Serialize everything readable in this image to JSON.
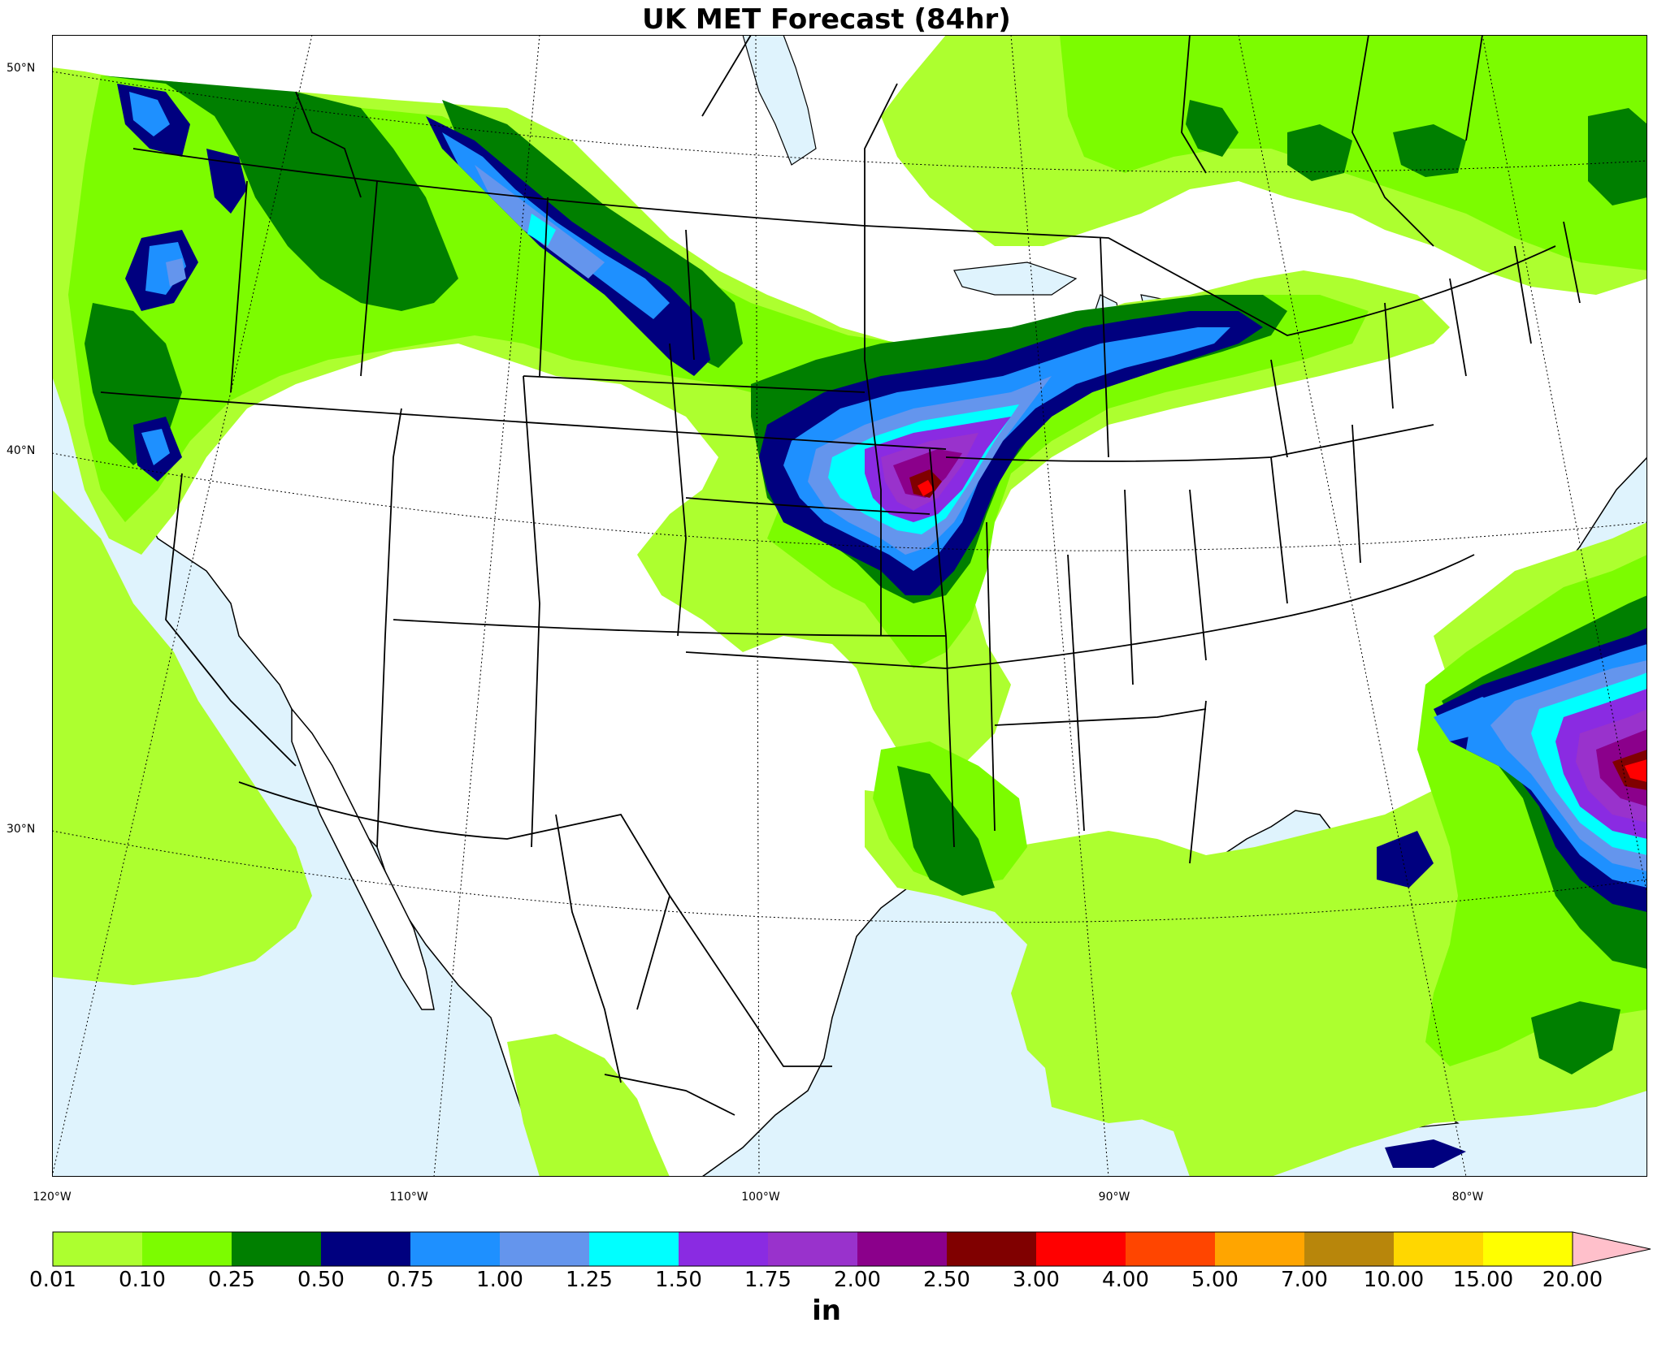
{
  "title": "UK MET Forecast (84hr)",
  "map": {
    "lat_labels": [
      "50°N",
      "40°N",
      "30°N"
    ],
    "lon_labels": [
      "120°W",
      "110°W",
      "100°W",
      "90°W",
      "80°W"
    ],
    "colors": {
      "water": "#dff3fd",
      "land": "#ffffff",
      "border": "#000000"
    }
  },
  "colorbar": {
    "unit": "in",
    "ticks": [
      "0.01",
      "0.10",
      "0.25",
      "0.50",
      "0.75",
      "1.00",
      "1.25",
      "1.50",
      "1.75",
      "2.00",
      "2.50",
      "3.00",
      "4.00",
      "5.00",
      "7.00",
      "10.00",
      "15.00",
      "20.00"
    ],
    "colors": [
      "#adff2f",
      "#7cfc00",
      "#007f00",
      "#00007f",
      "#1e90ff",
      "#6495ed",
      "#00ffff",
      "#8a2be2",
      "#9932cc",
      "#8b008b",
      "#800000",
      "#ff0000",
      "#ff4500",
      "#ffa500",
      "#b8860b",
      "#ffd700",
      "#ffff00"
    ],
    "extend_color": "#ffc0cb"
  }
}
